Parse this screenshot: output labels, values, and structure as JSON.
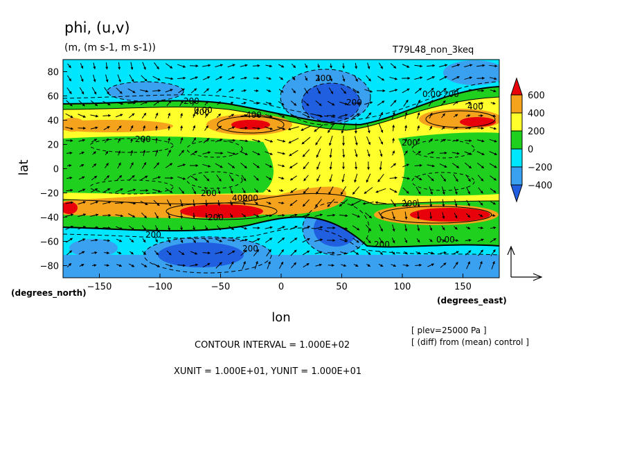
{
  "title": "phi, (u,v)",
  "units": "(m, (m s-1, m s-1))",
  "experiment": "T79L48_non_3keq",
  "chart_data": {
    "type": "contour-vector map",
    "variable": "phi",
    "vector": "(u,v)",
    "xlabel": "lon",
    "ylabel": "lat",
    "xunit_label": "(degrees_east)",
    "yunit_label": "(degrees_north)",
    "xlim": [
      -180,
      180
    ],
    "ylim": [
      -90,
      90
    ],
    "xticks": [
      -150,
      -100,
      -50,
      0,
      50,
      100,
      150
    ],
    "yticks": [
      80,
      60,
      40,
      20,
      0,
      -20,
      -40,
      -60,
      -80
    ],
    "colorbar": {
      "labels": [
        "600",
        "400",
        "200",
        "0",
        "−200",
        "−400"
      ],
      "colors": [
        "#e8000b",
        "#f5a21c",
        "#ffff2b",
        "#1fd01f",
        "#00e6ff",
        "#3aa0f0",
        "#1f5fe0"
      ]
    },
    "contour_labels": [
      "200",
      "200",
      "400",
      "200",
      "0.00",
      "200",
      "200",
      "400",
      "0.00",
      "200",
      "200",
      "200",
      "400",
      "400",
      "200",
      "200",
      "0.00",
      "200",
      "200",
      "200"
    ],
    "contour_interval_text": "CONTOUR INTERVAL = 1.000E+02",
    "vector_unit_text": "XUNIT = 1.000E+01, YUNIT = 1.000E+01",
    "level_note": "[ plev=25000 Pa ]",
    "diff_note": "[ (diff) from (mean) control ]"
  }
}
